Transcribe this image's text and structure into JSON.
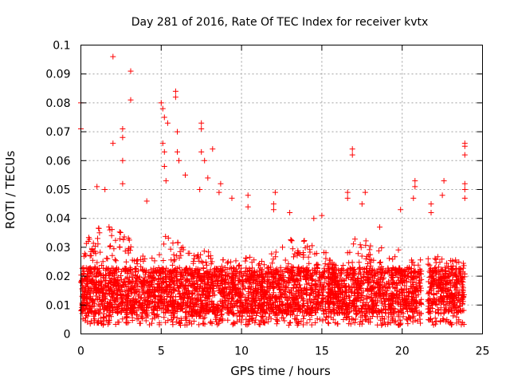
{
  "chart_data": {
    "type": "scatter",
    "title": "Day 281 of 2016, Rate Of TEC Index for receiver kvtx",
    "xlabel": "GPS time / hours",
    "ylabel": "ROTI / TECUs",
    "xlim": [
      0,
      25
    ],
    "ylim": [
      0,
      0.1
    ],
    "xticks": [
      "0",
      "5",
      "10",
      "15",
      "20",
      "25"
    ],
    "yticks": [
      "0",
      "0.01",
      "0.02",
      "0.03",
      "0.04",
      "0.05",
      "0.06",
      "0.07",
      "0.08",
      "0.09",
      "0.1"
    ],
    "grid": true,
    "marker": "+",
    "color": "#ff0000",
    "series": [
      {
        "name": "ROTI",
        "notable_points": [
          {
            "x": 0.0,
            "y": 0.08
          },
          {
            "x": 0.0,
            "y": 0.071
          },
          {
            "x": 2.0,
            "y": 0.096
          },
          {
            "x": 3.1,
            "y": 0.091
          },
          {
            "x": 3.1,
            "y": 0.081
          },
          {
            "x": 2.0,
            "y": 0.066
          },
          {
            "x": 2.6,
            "y": 0.071
          },
          {
            "x": 2.6,
            "y": 0.068
          },
          {
            "x": 2.6,
            "y": 0.06
          },
          {
            "x": 2.6,
            "y": 0.052
          },
          {
            "x": 1.0,
            "y": 0.051
          },
          {
            "x": 1.5,
            "y": 0.05
          },
          {
            "x": 4.1,
            "y": 0.046
          },
          {
            "x": 5.0,
            "y": 0.08
          },
          {
            "x": 5.1,
            "y": 0.078
          },
          {
            "x": 5.2,
            "y": 0.075
          },
          {
            "x": 5.4,
            "y": 0.073
          },
          {
            "x": 5.9,
            "y": 0.084
          },
          {
            "x": 5.9,
            "y": 0.082
          },
          {
            "x": 6.0,
            "y": 0.07
          },
          {
            "x": 5.1,
            "y": 0.066
          },
          {
            "x": 5.2,
            "y": 0.063
          },
          {
            "x": 6.0,
            "y": 0.063
          },
          {
            "x": 6.1,
            "y": 0.06
          },
          {
            "x": 5.2,
            "y": 0.058
          },
          {
            "x": 5.3,
            "y": 0.053
          },
          {
            "x": 6.5,
            "y": 0.055
          },
          {
            "x": 7.5,
            "y": 0.073
          },
          {
            "x": 7.5,
            "y": 0.071
          },
          {
            "x": 8.2,
            "y": 0.064
          },
          {
            "x": 7.5,
            "y": 0.063
          },
          {
            "x": 7.7,
            "y": 0.06
          },
          {
            "x": 7.9,
            "y": 0.054
          },
          {
            "x": 7.4,
            "y": 0.05
          },
          {
            "x": 8.7,
            "y": 0.052
          },
          {
            "x": 8.6,
            "y": 0.049
          },
          {
            "x": 9.4,
            "y": 0.047
          },
          {
            "x": 10.4,
            "y": 0.048
          },
          {
            "x": 10.4,
            "y": 0.044
          },
          {
            "x": 12.1,
            "y": 0.049
          },
          {
            "x": 12.0,
            "y": 0.045
          },
          {
            "x": 12.0,
            "y": 0.043
          },
          {
            "x": 13.0,
            "y": 0.042
          },
          {
            "x": 14.5,
            "y": 0.04
          },
          {
            "x": 15.0,
            "y": 0.041
          },
          {
            "x": 16.6,
            "y": 0.049
          },
          {
            "x": 16.6,
            "y": 0.047
          },
          {
            "x": 16.9,
            "y": 0.064
          },
          {
            "x": 16.9,
            "y": 0.062
          },
          {
            "x": 17.5,
            "y": 0.045
          },
          {
            "x": 17.7,
            "y": 0.049
          },
          {
            "x": 18.6,
            "y": 0.037
          },
          {
            "x": 19.9,
            "y": 0.043
          },
          {
            "x": 20.8,
            "y": 0.053
          },
          {
            "x": 20.8,
            "y": 0.051
          },
          {
            "x": 20.7,
            "y": 0.047
          },
          {
            "x": 21.8,
            "y": 0.045
          },
          {
            "x": 21.8,
            "y": 0.042
          },
          {
            "x": 22.6,
            "y": 0.053
          },
          {
            "x": 22.5,
            "y": 0.048
          },
          {
            "x": 23.9,
            "y": 0.066
          },
          {
            "x": 23.9,
            "y": 0.065
          },
          {
            "x": 23.9,
            "y": 0.062
          },
          {
            "x": 23.9,
            "y": 0.052
          },
          {
            "x": 23.9,
            "y": 0.05
          },
          {
            "x": 23.9,
            "y": 0.047
          }
        ],
        "density_profile": {
          "x_range": [
            0,
            23.9
          ],
          "gaps": [
            [
              21.2,
              21.6
            ]
          ],
          "base_level_typical": 0.015,
          "min_level": 0.003,
          "upper_envelope_by_hour": [
            {
              "x": 0,
              "y": 0.03
            },
            {
              "x": 1,
              "y": 0.037
            },
            {
              "x": 2,
              "y": 0.038
            },
            {
              "x": 3,
              "y": 0.034
            },
            {
              "x": 4,
              "y": 0.028
            },
            {
              "x": 5,
              "y": 0.036
            },
            {
              "x": 6,
              "y": 0.032
            },
            {
              "x": 7,
              "y": 0.028
            },
            {
              "x": 8,
              "y": 0.03
            },
            {
              "x": 9,
              "y": 0.026
            },
            {
              "x": 10,
              "y": 0.028
            },
            {
              "x": 11,
              "y": 0.027
            },
            {
              "x": 12,
              "y": 0.028
            },
            {
              "x": 13,
              "y": 0.033
            },
            {
              "x": 14,
              "y": 0.033
            },
            {
              "x": 15,
              "y": 0.03
            },
            {
              "x": 16,
              "y": 0.023
            },
            {
              "x": 17,
              "y": 0.033
            },
            {
              "x": 18,
              "y": 0.032
            },
            {
              "x": 19,
              "y": 0.03
            },
            {
              "x": 20,
              "y": 0.029
            },
            {
              "x": 21,
              "y": 0.026
            },
            {
              "x": 22,
              "y": 0.027
            },
            {
              "x": 23,
              "y": 0.026
            },
            {
              "x": 23.9,
              "y": 0.025
            }
          ]
        }
      }
    ]
  }
}
